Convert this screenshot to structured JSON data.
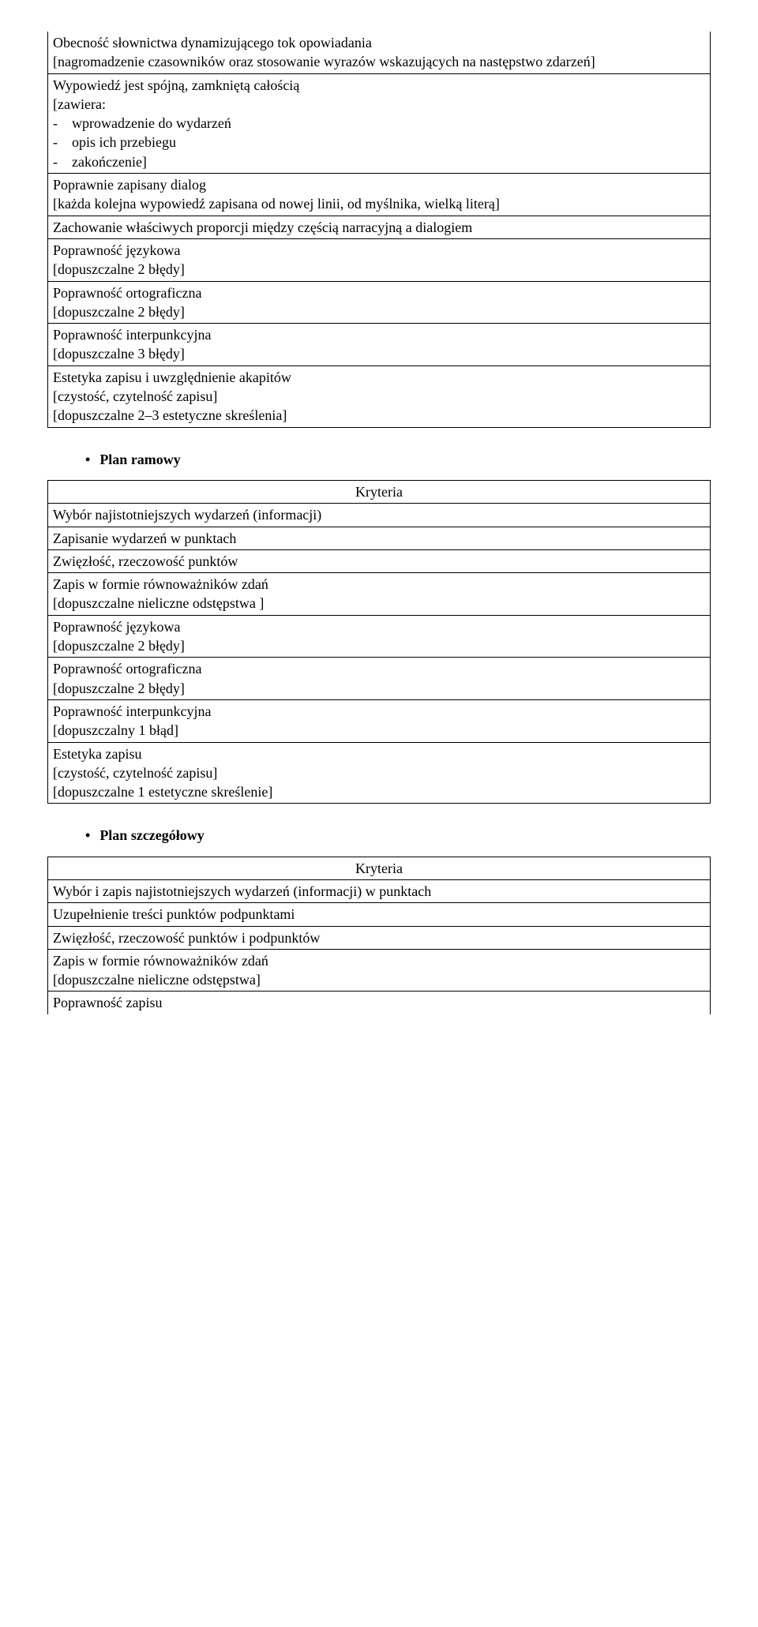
{
  "table1": {
    "rows": [
      "Obecność słownictwa dynamizującego tok opowiadania\n[nagromadzenie czasowników oraz stosowanie wyrazów wskazujących na następstwo zdarzeń]",
      "Wypowiedź jest spójną, zamkniętą całością\n[zawiera:\n-    wprowadzenie do wydarzeń\n-    opis ich przebiegu\n-    zakończenie]",
      "Poprawnie zapisany dialog\n[każda kolejna wypowiedź zapisana od nowej linii, od myślnika, wielką literą]",
      "Zachowanie właściwych proporcji między częścią narracyjną a dialogiem",
      "Poprawność językowa\n[dopuszczalne 2 błędy]",
      "Poprawność ortograficzna\n[dopuszczalne 2 błędy]",
      "Poprawność interpunkcyjna\n[dopuszczalne 3 błędy]",
      "Estetyka zapisu i uwzględnienie akapitów\n[czystość, czytelność zapisu]\n[dopuszczalne 2–3 estetyczne skreślenia]"
    ]
  },
  "heading2": "Plan ramowy",
  "table2": {
    "header": "Kryteria",
    "rows": [
      "Wybór najistotniejszych wydarzeń (informacji)",
      "Zapisanie wydarzeń w punktach",
      "Zwięzłość, rzeczowość punktów",
      "Zapis w formie równoważników zdań\n[dopuszczalne nieliczne odstępstwa ]",
      "Poprawność językowa\n[dopuszczalne 2 błędy]",
      "Poprawność ortograficzna\n[dopuszczalne 2 błędy]",
      "Poprawność interpunkcyjna\n[dopuszczalny 1 błąd]",
      "Estetyka zapisu\n[czystość, czytelność zapisu]\n[dopuszczalne 1 estetyczne skreślenie]"
    ]
  },
  "heading3": "Plan szczegółowy",
  "table3": {
    "header": "Kryteria",
    "rows": [
      "Wybór i zapis najistotniejszych wydarzeń (informacji) w punktach",
      "Uzupełnienie treści punktów podpunktami",
      "Zwięzłość, rzeczowość punktów i podpunktów",
      "Zapis w formie równoważników zdań\n[dopuszczalne nieliczne odstępstwa]",
      "Poprawność zapisu"
    ]
  }
}
